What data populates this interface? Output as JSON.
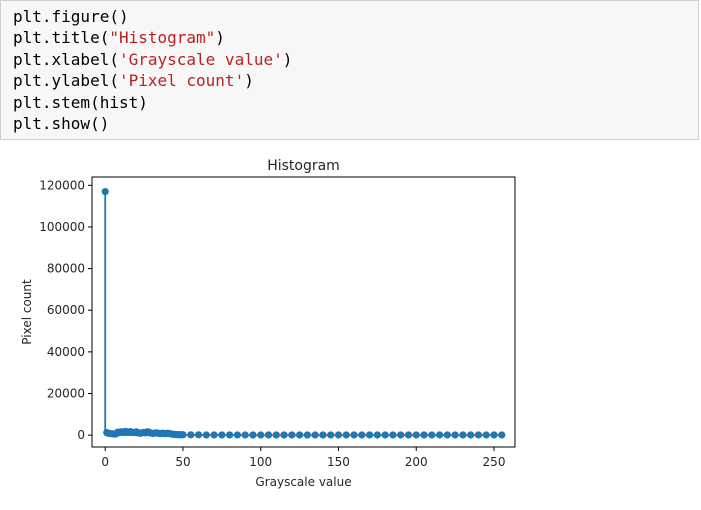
{
  "notebook": {
    "code_cell": {
      "lines": [
        {
          "prefix": "plt.figure()",
          "string": "",
          "suffix": ""
        },
        {
          "prefix": "plt.title(",
          "string": "\"Histogram\"",
          "suffix": ")"
        },
        {
          "prefix": "plt.xlabel(",
          "string": "'Grayscale value'",
          "suffix": ")"
        },
        {
          "prefix": "plt.ylabel(",
          "string": "'Pixel count'",
          "suffix": ")"
        },
        {
          "prefix": "plt.stem(hist)",
          "string": "",
          "suffix": ""
        },
        {
          "prefix": "plt.show()",
          "string": "",
          "suffix": ""
        }
      ]
    }
  },
  "chart_data": {
    "type": "stem",
    "title": "Histogram",
    "xlabel": "Grayscale value",
    "ylabel": "Pixel count",
    "xlim": [
      -8.5,
      263.5
    ],
    "ylim": [
      -5700,
      124000
    ],
    "xticks": [
      0,
      50,
      100,
      150,
      200,
      250
    ],
    "yticks": [
      0,
      20000,
      40000,
      60000,
      80000,
      100000,
      120000
    ],
    "x": [
      0,
      1,
      2,
      3,
      4,
      5,
      6,
      7,
      8,
      9,
      10,
      11,
      12,
      13,
      14,
      15,
      16,
      17,
      18,
      19,
      20,
      21,
      22,
      23,
      24,
      25,
      26,
      27,
      28,
      29,
      30,
      31,
      32,
      33,
      34,
      35,
      36,
      37,
      38,
      39,
      40,
      41,
      42,
      43,
      44,
      45,
      46,
      47,
      48,
      49,
      50,
      55,
      60,
      65,
      70,
      75,
      80,
      85,
      90,
      95,
      100,
      105,
      110,
      115,
      120,
      125,
      130,
      135,
      140,
      145,
      150,
      155,
      160,
      165,
      170,
      175,
      180,
      185,
      190,
      195,
      200,
      205,
      210,
      215,
      220,
      225,
      230,
      235,
      240,
      245,
      250,
      255
    ],
    "values": [
      117000,
      1200,
      900,
      800,
      700,
      600,
      500,
      600,
      1400,
      1200,
      1600,
      1500,
      1300,
      1800,
      1600,
      1400,
      1700,
      1500,
      1300,
      1200,
      1600,
      1100,
      1000,
      900,
      1200,
      1300,
      1100,
      1600,
      1500,
      1000,
      900,
      800,
      1000,
      1100,
      900,
      800,
      700,
      900,
      800,
      700,
      900,
      800,
      600,
      500,
      400,
      300,
      300,
      200,
      200,
      200,
      200,
      150,
      150,
      100,
      100,
      100,
      100,
      100,
      100,
      80,
      80,
      80,
      80,
      80,
      80,
      80,
      80,
      80,
      80,
      80,
      80,
      80,
      80,
      80,
      80,
      80,
      80,
      80,
      80,
      80,
      80,
      80,
      80,
      80,
      80,
      80,
      80,
      80,
      80,
      80,
      80,
      80
    ],
    "stem_color": "#1f77b4",
    "baseline_color": "#d62728",
    "grid": false,
    "legend": "none"
  }
}
